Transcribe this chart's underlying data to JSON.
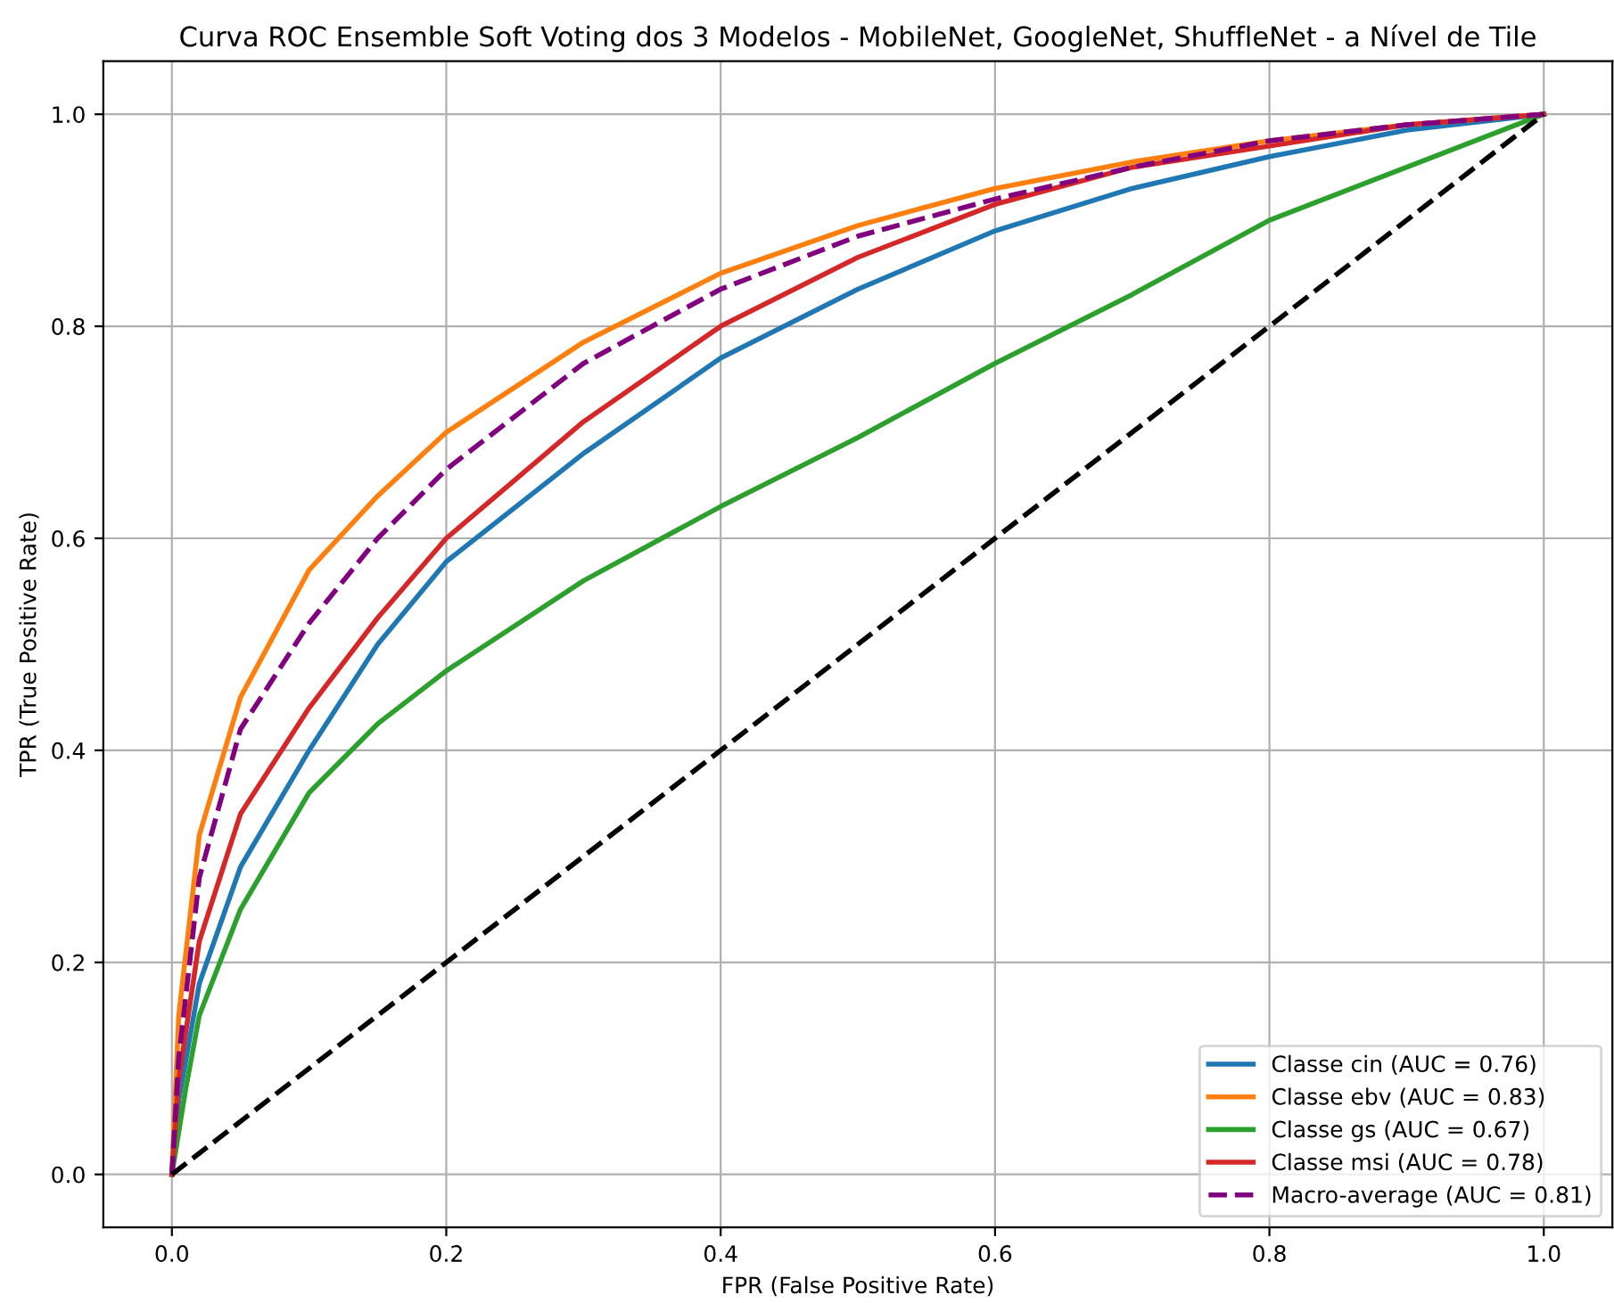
{
  "chart_data": {
    "type": "line",
    "title": "Curva ROC Ensemble Soft Voting dos 3 Modelos - MobileNet, GoogleNet, ShuffleNet - a Nível de Tile",
    "xlabel": "FPR (False Positive Rate)",
    "ylabel": "TPR (True Positive Rate)",
    "xlim": [
      -0.05,
      1.05
    ],
    "ylim": [
      -0.05,
      1.05
    ],
    "xticks": [
      {
        "value": 0,
        "label": "0.0"
      },
      {
        "value": 0.2,
        "label": "0.2"
      },
      {
        "value": 0.4,
        "label": "0.4"
      },
      {
        "value": 0.6,
        "label": "0.6"
      },
      {
        "value": 0.8,
        "label": "0.8"
      },
      {
        "value": 1,
        "label": "1.0"
      }
    ],
    "yticks": [
      {
        "value": 0,
        "label": "0.0"
      },
      {
        "value": 0.2,
        "label": "0.2"
      },
      {
        "value": 0.4,
        "label": "0.4"
      },
      {
        "value": 0.6,
        "label": "0.6"
      },
      {
        "value": 0.8,
        "label": "0.8"
      },
      {
        "value": 1,
        "label": "1.0"
      }
    ],
    "grid": true,
    "legend": "bottom right",
    "marker": "none",
    "series": [
      {
        "name": "Classe cin (AUC = 0.76)",
        "color": "#1f77b4",
        "line_style": "solid",
        "x": [
          0,
          0.005,
          0.02,
          0.05,
          0.1,
          0.15,
          0.2,
          0.3,
          0.4,
          0.5,
          0.6,
          0.7,
          0.8,
          0.9,
          1
        ],
        "values": [
          0,
          0.07,
          0.18,
          0.29,
          0.4,
          0.5,
          0.578,
          0.68,
          0.77,
          0.835,
          0.89,
          0.93,
          0.96,
          0.985,
          1
        ]
      },
      {
        "name": "Classe ebv (AUC = 0.83)",
        "color": "#ff7f0e",
        "line_style": "solid",
        "x": [
          0,
          0.005,
          0.02,
          0.05,
          0.1,
          0.15,
          0.2,
          0.3,
          0.4,
          0.5,
          0.6,
          0.7,
          0.8,
          0.9,
          1
        ],
        "values": [
          0,
          0.15,
          0.32,
          0.45,
          0.57,
          0.64,
          0.7,
          0.785,
          0.85,
          0.895,
          0.93,
          0.955,
          0.975,
          0.99,
          1
        ]
      },
      {
        "name": "Classe gs (AUC = 0.67)",
        "color": "#2ca02c",
        "line_style": "solid",
        "x": [
          0,
          0.005,
          0.01,
          0.02,
          0.05,
          0.1,
          0.15,
          0.2,
          0.3,
          0.4,
          0.5,
          0.6,
          0.7,
          0.8,
          0.9,
          1
        ],
        "values": [
          0,
          0.04,
          0.08,
          0.15,
          0.25,
          0.36,
          0.425,
          0.475,
          0.56,
          0.63,
          0.695,
          0.765,
          0.83,
          0.9,
          0.95,
          1
        ]
      },
      {
        "name": "Classe msi (AUC = 0.78)",
        "color": "#d62728",
        "line_style": "solid",
        "x": [
          0,
          0.005,
          0.02,
          0.05,
          0.1,
          0.15,
          0.2,
          0.3,
          0.4,
          0.5,
          0.6,
          0.7,
          0.8,
          0.9,
          1
        ],
        "values": [
          0,
          0.09,
          0.22,
          0.34,
          0.44,
          0.525,
          0.6,
          0.71,
          0.8,
          0.865,
          0.915,
          0.95,
          0.97,
          0.99,
          1
        ]
      },
      {
        "name": "Macro-average (AUC = 0.81)",
        "color": "#800080",
        "line_style": "dashed",
        "x": [
          0,
          0.005,
          0.02,
          0.05,
          0.1,
          0.15,
          0.2,
          0.3,
          0.4,
          0.5,
          0.6,
          0.7,
          0.8,
          0.9,
          1
        ],
        "values": [
          0,
          0.11,
          0.28,
          0.42,
          0.52,
          0.6,
          0.665,
          0.765,
          0.835,
          0.885,
          0.92,
          0.95,
          0.975,
          0.99,
          1
        ]
      },
      {
        "color": "#000000",
        "line_style": "dashed",
        "x": [
          0,
          1
        ],
        "values": [
          0,
          1
        ]
      }
    ]
  }
}
